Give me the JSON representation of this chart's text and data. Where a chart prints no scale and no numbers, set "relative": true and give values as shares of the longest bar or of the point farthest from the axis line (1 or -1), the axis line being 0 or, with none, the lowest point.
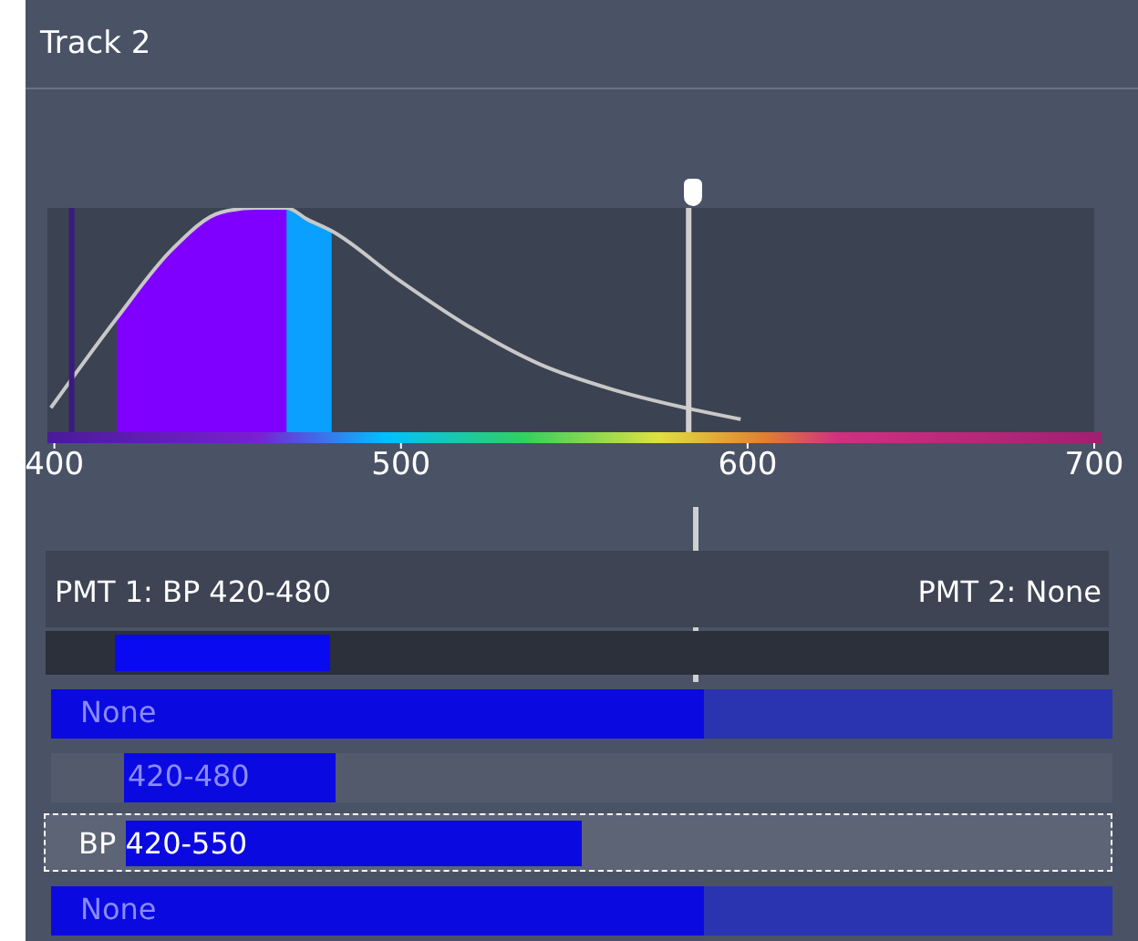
{
  "chart_data": {
    "type": "line",
    "title": "Track 2",
    "relative": true,
    "marker": "none",
    "grid": false,
    "legend": false,
    "xlim": [
      398,
      700
    ],
    "xticks": [
      400,
      500,
      600,
      700
    ],
    "series": [
      {
        "type": "area",
        "color": "#8000ff",
        "x": [
          418,
          434,
          448,
          458,
          467
        ],
        "values": [
          0.52,
          0.82,
          0.98,
          1.0,
          1.0
        ]
      },
      {
        "type": "area",
        "color": "#0aa0ff",
        "x": [
          467,
          473,
          480
        ],
        "values": [
          1.0,
          0.95,
          0.9
        ]
      },
      {
        "type": "line",
        "color": "#c8c8c8",
        "x": [
          399,
          418,
          434,
          448,
          458,
          467,
          473,
          480,
          499,
          520,
          540,
          561,
          582,
          598
        ],
        "values": [
          0.13,
          0.52,
          0.82,
          0.98,
          1.0,
          1.0,
          0.95,
          0.9,
          0.69,
          0.48,
          0.32,
          0.21,
          0.13,
          0.08
        ]
      }
    ],
    "ref_lines": [
      {
        "axis": "x",
        "value": 405,
        "color": "#3a1a80"
      },
      {
        "axis": "x",
        "value": 583,
        "color": "#d0d0d0"
      }
    ],
    "annotations": [
      "PMT 1: BP 420-480",
      "PMT 2: None",
      "None",
      "420-480",
      "BP 420-550",
      "None"
    ]
  }
}
